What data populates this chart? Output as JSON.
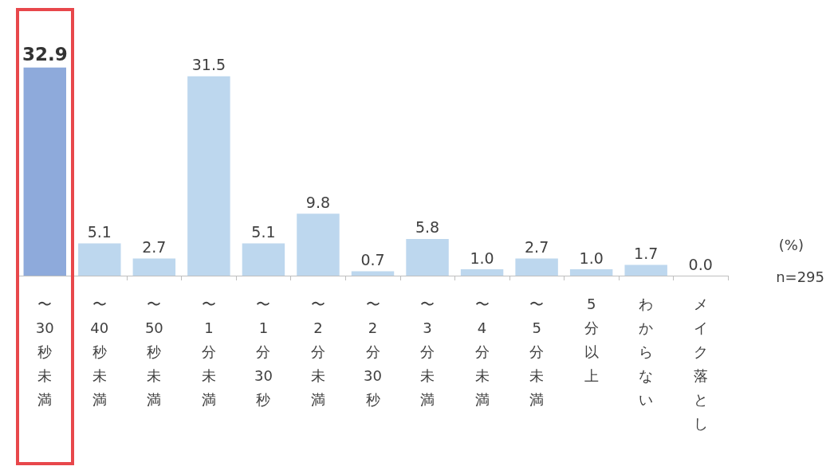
{
  "chart_data": {
    "type": "bar",
    "categories": [
      "〜30秒未満",
      "〜40秒未満",
      "〜50秒未満",
      "〜1分未満",
      "〜1分30秒",
      "〜2分未満",
      "〜2分30秒",
      "〜3分未満",
      "〜4分未満",
      "〜5分未満",
      "5分以上",
      "わからない",
      "メイク落とし"
    ],
    "values": [
      32.9,
      5.1,
      2.7,
      31.5,
      5.1,
      9.8,
      0.7,
      5.8,
      1.0,
      2.7,
      1.0,
      1.7,
      0.0
    ],
    "colors": [
      "#8eaadb",
      "#bdd7ee",
      "#bdd7ee",
      "#bdd7ee",
      "#bdd7ee",
      "#bdd7ee",
      "#bdd7ee",
      "#bdd7ee",
      "#bdd7ee",
      "#bdd7ee",
      "#bdd7ee",
      "#bdd7ee",
      "#bdd7ee"
    ],
    "value_labels": [
      "32.9",
      "5.1",
      "2.7",
      "31.5",
      "5.1",
      "9.8",
      "0.7",
      "5.8",
      "1.0",
      "2.7",
      "1.0",
      "1.7",
      "0.0"
    ],
    "grid": false,
    "annotations": [
      "(%)",
      "n=295"
    ]
  }
}
